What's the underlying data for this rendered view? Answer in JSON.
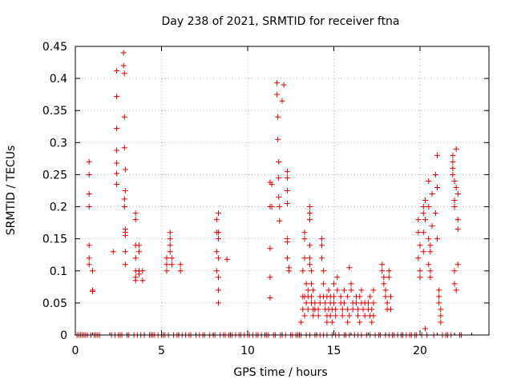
{
  "chart_data": {
    "type": "scatter",
    "title": "Day 238 of 2021, SRMTID for receiver ftna",
    "xlabel": "GPS time / hours",
    "ylabel": "SRMTID / TECUs",
    "xlim": [
      0,
      24
    ],
    "ylim": [
      0,
      0.45
    ],
    "xticks": [
      0,
      5,
      10,
      15,
      20
    ],
    "xtick_labels": [
      "0",
      "5",
      "10",
      "15",
      "20"
    ],
    "yticks": [
      0,
      0.05,
      0.1,
      0.15,
      0.2,
      0.25,
      0.3,
      0.35,
      0.4,
      0.45
    ],
    "ytick_labels": [
      "0",
      "0.05",
      "0.1",
      "0.15",
      "0.2",
      "0.25",
      "0.3",
      "0.35",
      "0.4",
      "0.45"
    ],
    "grid": true,
    "marker": "plus",
    "color": "#e00000",
    "series": [
      {
        "name": "SRMTID",
        "points": [
          [
            0.8,
            0.27
          ],
          [
            0.8,
            0.25
          ],
          [
            0.8,
            0.22
          ],
          [
            0.8,
            0.2
          ],
          [
            0.8,
            0.14
          ],
          [
            0.8,
            0.12
          ],
          [
            0.8,
            0.11
          ],
          [
            1.0,
            0.1
          ],
          [
            1.0,
            0.07
          ],
          [
            1.0,
            0.068
          ],
          [
            2.2,
            0.13
          ],
          [
            2.4,
            0.412
          ],
          [
            2.4,
            0.372
          ],
          [
            2.4,
            0.322
          ],
          [
            2.4,
            0.288
          ],
          [
            2.4,
            0.268
          ],
          [
            2.4,
            0.252
          ],
          [
            2.4,
            0.235
          ],
          [
            2.8,
            0.44
          ],
          [
            2.8,
            0.42
          ],
          [
            2.85,
            0.408
          ],
          [
            2.85,
            0.34
          ],
          [
            2.85,
            0.292
          ],
          [
            2.85,
            0.212
          ],
          [
            2.85,
            0.2
          ],
          [
            2.9,
            0.258
          ],
          [
            2.9,
            0.225
          ],
          [
            2.9,
            0.165
          ],
          [
            2.9,
            0.16
          ],
          [
            2.9,
            0.155
          ],
          [
            2.9,
            0.13
          ],
          [
            2.9,
            0.11
          ],
          [
            3.5,
            0.19
          ],
          [
            3.5,
            0.18
          ],
          [
            3.5,
            0.14
          ],
          [
            3.5,
            0.12
          ],
          [
            3.5,
            0.1
          ],
          [
            3.5,
            0.09
          ],
          [
            3.5,
            0.085
          ],
          [
            3.7,
            0.14
          ],
          [
            3.7,
            0.13
          ],
          [
            3.7,
            0.1
          ],
          [
            3.7,
            0.095
          ],
          [
            3.9,
            0.1
          ],
          [
            3.9,
            0.085
          ],
          [
            5.3,
            0.12
          ],
          [
            5.3,
            0.11
          ],
          [
            5.3,
            0.1
          ],
          [
            5.5,
            0.16
          ],
          [
            5.5,
            0.15
          ],
          [
            5.5,
            0.14
          ],
          [
            5.5,
            0.13
          ],
          [
            5.6,
            0.12
          ],
          [
            5.6,
            0.11
          ],
          [
            6.1,
            0.11
          ],
          [
            6.1,
            0.1
          ],
          [
            8.2,
            0.18
          ],
          [
            8.2,
            0.16
          ],
          [
            8.2,
            0.13
          ],
          [
            8.2,
            0.1
          ],
          [
            8.3,
            0.19
          ],
          [
            8.3,
            0.16
          ],
          [
            8.3,
            0.15
          ],
          [
            8.3,
            0.12
          ],
          [
            8.3,
            0.09
          ],
          [
            8.3,
            0.07
          ],
          [
            8.3,
            0.05
          ],
          [
            8.8,
            0.118
          ],
          [
            11.3,
            0.238
          ],
          [
            11.3,
            0.2
          ],
          [
            11.3,
            0.135
          ],
          [
            11.3,
            0.09
          ],
          [
            11.3,
            0.058
          ],
          [
            11.4,
            0.235
          ],
          [
            11.4,
            0.2
          ],
          [
            11.7,
            0.393
          ],
          [
            11.7,
            0.375
          ],
          [
            11.75,
            0.34
          ],
          [
            11.75,
            0.305
          ],
          [
            11.8,
            0.27
          ],
          [
            11.8,
            0.245
          ],
          [
            11.8,
            0.215
          ],
          [
            11.85,
            0.2
          ],
          [
            11.85,
            0.178
          ],
          [
            12.0,
            0.365
          ],
          [
            12.1,
            0.39
          ],
          [
            12.3,
            0.255
          ],
          [
            12.3,
            0.245
          ],
          [
            12.3,
            0.225
          ],
          [
            12.3,
            0.205
          ],
          [
            12.3,
            0.15
          ],
          [
            12.3,
            0.145
          ],
          [
            12.3,
            0.12
          ],
          [
            12.4,
            0.105
          ],
          [
            12.4,
            0.1
          ],
          [
            13.1,
            0.0
          ],
          [
            13.1,
            0.02
          ],
          [
            13.2,
            0.04
          ],
          [
            13.2,
            0.06
          ],
          [
            13.2,
            0.1
          ],
          [
            13.3,
            0.12
          ],
          [
            13.3,
            0.15
          ],
          [
            13.3,
            0.16
          ],
          [
            13.3,
            0.06
          ],
          [
            13.3,
            0.03
          ],
          [
            13.4,
            0.08
          ],
          [
            13.4,
            0.05
          ],
          [
            13.5,
            0.04
          ],
          [
            13.5,
            0.06
          ],
          [
            13.5,
            0.07
          ],
          [
            13.6,
            0.2
          ],
          [
            13.6,
            0.19
          ],
          [
            13.6,
            0.18
          ],
          [
            13.6,
            0.14
          ],
          [
            13.6,
            0.12
          ],
          [
            13.6,
            0.11
          ],
          [
            13.7,
            0.1
          ],
          [
            13.7,
            0.08
          ],
          [
            13.7,
            0.06
          ],
          [
            13.7,
            0.05
          ],
          [
            13.8,
            0.04
          ],
          [
            13.8,
            0.03
          ],
          [
            13.8,
            0.07
          ],
          [
            13.9,
            0.04
          ],
          [
            13.9,
            0.05
          ],
          [
            14.1,
            0.04
          ],
          [
            14.1,
            0.03
          ],
          [
            14.2,
            0.06
          ],
          [
            14.2,
            0.05
          ],
          [
            14.3,
            0.15
          ],
          [
            14.3,
            0.14
          ],
          [
            14.3,
            0.12
          ],
          [
            14.4,
            0.1
          ],
          [
            14.4,
            0.08
          ],
          [
            14.4,
            0.06
          ],
          [
            14.5,
            0.04
          ],
          [
            14.5,
            0.05
          ],
          [
            14.6,
            0.02
          ],
          [
            14.6,
            0.03
          ],
          [
            14.6,
            0.06
          ],
          [
            14.7,
            0.07
          ],
          [
            14.7,
            0.04
          ],
          [
            14.8,
            0.03
          ],
          [
            14.8,
            0.05
          ],
          [
            14.8,
            0.06
          ],
          [
            14.9,
            0.04
          ],
          [
            14.9,
            0.02
          ],
          [
            15.0,
            0.05
          ],
          [
            15.0,
            0.06
          ],
          [
            15.0,
            0.08
          ],
          [
            15.1,
            0.03
          ],
          [
            15.1,
            0.04
          ],
          [
            15.2,
            0.09
          ],
          [
            15.2,
            0.07
          ],
          [
            15.4,
            0.05
          ],
          [
            15.4,
            0.06
          ],
          [
            15.5,
            0.04
          ],
          [
            15.5,
            0.03
          ],
          [
            15.6,
            0.07
          ],
          [
            15.6,
            0.05
          ],
          [
            15.8,
            0.06
          ],
          [
            15.8,
            0.04
          ],
          [
            15.8,
            0.02
          ],
          [
            15.9,
            0.03
          ],
          [
            15.9,
            0.105
          ],
          [
            16.0,
            0.07
          ],
          [
            16.0,
            0.08
          ],
          [
            16.1,
            0.05
          ],
          [
            16.1,
            0.04
          ],
          [
            16.3,
            0.06
          ],
          [
            16.3,
            0.05
          ],
          [
            16.4,
            0.04
          ],
          [
            16.4,
            0.03
          ],
          [
            16.5,
            0.02
          ],
          [
            16.5,
            0.06
          ],
          [
            16.6,
            0.07
          ],
          [
            16.6,
            0.05
          ],
          [
            16.7,
            0.04
          ],
          [
            16.8,
            0.03
          ],
          [
            16.8,
            0.05
          ],
          [
            17.0,
            0.04
          ],
          [
            17.0,
            0.05
          ],
          [
            17.1,
            0.03
          ],
          [
            17.1,
            0.06
          ],
          [
            17.2,
            0.04
          ],
          [
            17.2,
            0.02
          ],
          [
            17.3,
            0.03
          ],
          [
            17.3,
            0.05
          ],
          [
            17.3,
            0.07
          ],
          [
            17.8,
            0.11
          ],
          [
            17.8,
            0.1
          ],
          [
            17.9,
            0.09
          ],
          [
            17.9,
            0.08
          ],
          [
            18.0,
            0.07
          ],
          [
            18.0,
            0.06
          ],
          [
            18.1,
            0.05
          ],
          [
            18.1,
            0.04
          ],
          [
            18.2,
            0.09
          ],
          [
            18.2,
            0.1
          ],
          [
            18.3,
            0.06
          ],
          [
            18.3,
            0.04
          ],
          [
            19.9,
            0.18
          ],
          [
            19.9,
            0.16
          ],
          [
            19.9,
            0.12
          ],
          [
            20.0,
            0.14
          ],
          [
            20.0,
            0.1
          ],
          [
            20.0,
            0.09
          ],
          [
            20.2,
            0.2
          ],
          [
            20.2,
            0.19
          ],
          [
            20.2,
            0.16
          ],
          [
            20.2,
            0.13
          ],
          [
            20.3,
            0.21
          ],
          [
            20.3,
            0.18
          ],
          [
            20.3,
            0.01
          ],
          [
            20.5,
            0.24
          ],
          [
            20.5,
            0.2
          ],
          [
            20.5,
            0.15
          ],
          [
            20.5,
            0.11
          ],
          [
            20.6,
            0.14
          ],
          [
            20.6,
            0.13
          ],
          [
            20.6,
            0.1
          ],
          [
            20.6,
            0.09
          ],
          [
            20.7,
            0.22
          ],
          [
            20.7,
            0.17
          ],
          [
            20.9,
            0.25
          ],
          [
            20.9,
            0.19
          ],
          [
            21.0,
            0.28
          ],
          [
            21.0,
            0.23
          ],
          [
            21.0,
            0.15
          ],
          [
            21.1,
            0.07
          ],
          [
            21.1,
            0.06
          ],
          [
            21.1,
            0.05
          ],
          [
            21.2,
            0.04
          ],
          [
            21.2,
            0.03
          ],
          [
            21.2,
            0.02
          ],
          [
            21.9,
            0.28
          ],
          [
            21.9,
            0.27
          ],
          [
            21.9,
            0.26
          ],
          [
            21.9,
            0.25
          ],
          [
            22.0,
            0.24
          ],
          [
            22.0,
            0.21
          ],
          [
            22.0,
            0.2
          ],
          [
            22.0,
            0.1
          ],
          [
            22.0,
            0.08
          ],
          [
            22.1,
            0.07
          ],
          [
            22.1,
            0.29
          ],
          [
            22.1,
            0.23
          ],
          [
            22.2,
            0.22
          ],
          [
            22.2,
            0.18
          ],
          [
            22.2,
            0.165
          ],
          [
            22.2,
            0.11
          ]
        ],
        "zero_times": [
          0.1,
          0.2,
          0.3,
          0.4,
          0.5,
          0.6,
          0.7,
          0.9,
          1.1,
          1.2,
          1.3,
          1.4,
          2.1,
          2.3,
          2.5,
          2.6,
          2.7,
          3.0,
          3.1,
          3.4,
          3.6,
          3.8,
          4.0,
          4.3,
          4.4,
          4.5,
          4.6,
          4.8,
          5.0,
          5.1,
          5.2,
          5.4,
          5.7,
          5.9,
          6.0,
          6.2,
          6.4,
          6.6,
          6.7,
          7.0,
          7.2,
          7.4,
          7.5,
          7.8,
          8.0,
          8.1,
          8.4,
          8.6,
          8.7,
          8.9,
          9.0,
          9.1,
          9.3,
          9.5,
          9.6,
          9.8,
          10.0,
          10.1,
          10.3,
          10.5,
          10.6,
          10.8,
          11.0,
          11.1,
          11.2,
          11.5,
          11.6,
          11.9,
          12.0,
          12.2,
          12.5,
          12.6,
          12.8,
          12.9,
          13.0,
          13.4,
          13.6,
          13.9,
          14.0,
          14.2,
          14.4,
          14.6,
          14.9,
          15.1,
          15.3,
          15.6,
          15.7,
          15.9,
          16.2,
          16.4,
          16.6,
          16.9,
          17.1,
          17.4,
          17.6,
          17.7,
          18.0,
          18.2,
          18.4,
          18.5,
          18.7,
          18.9,
          19.0,
          19.2,
          19.4,
          19.5,
          19.7,
          19.8,
          20.1,
          20.4,
          20.8,
          21.3,
          21.5,
          21.6,
          21.8,
          22.3,
          22.4
        ]
      }
    ]
  }
}
